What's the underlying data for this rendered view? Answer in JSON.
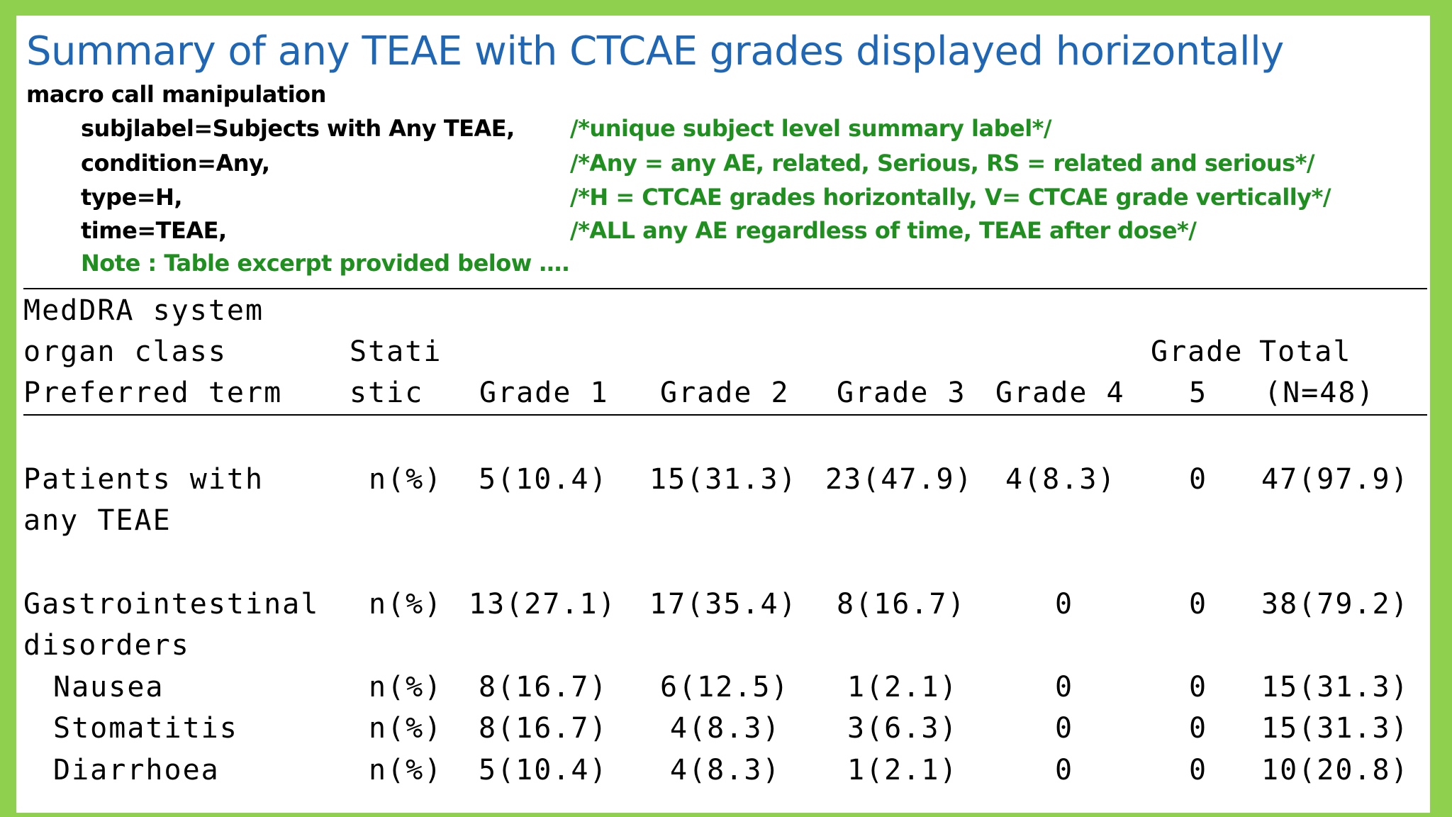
{
  "title": "Summary of any TEAE with CTCAE grades displayed horizontally",
  "macro": {
    "heading": "macro call manipulation",
    "params": [
      {
        "code": "subjlabel=Subjects with Any TEAE,",
        "comment": "/*unique subject level summary label*/"
      },
      {
        "code": "condition=Any,",
        "comment": "/*Any = any AE, related, Serious, RS = related and serious*/"
      },
      {
        "code": "type=H,",
        "comment": "/*H = CTCAE grades horizontally, V= CTCAE grade vertically*/"
      },
      {
        "code": "time=TEAE,",
        "comment": "/*ALL any AE regardless of time, TEAE after dose*/"
      }
    ],
    "note": "Note : Table excerpt provided below …."
  },
  "table": {
    "header": {
      "soc_line1": "MedDRA system",
      "soc_line2": "organ class",
      "soc_line3": "Preferred term",
      "stat_line1": "Stati",
      "stat_line2": "stic",
      "grade1": "Grade 1",
      "grade2": "Grade 2",
      "grade3": "Grade 3",
      "grade4": "Grade 4",
      "grade5_line1": "Grade",
      "grade5_line2": "5",
      "total_line1": "Total",
      "total_line2": "(N=48)"
    },
    "rows": [
      {
        "label1": "Patients with",
        "label2": "any TEAE",
        "stat": "n(%)",
        "g1": "5(10.4)",
        "g2": "15(31.3)",
        "g3": "23(47.9)",
        "g4": "4(8.3)",
        "g5": "0",
        "total": "47(97.9)"
      },
      {
        "label1": "Gastrointestinal",
        "label2": "disorders",
        "stat": "n(%)",
        "g1": "13(27.1)",
        "g2": "17(35.4)",
        "g3": "8(16.7)",
        "g4": "0",
        "g5": "0",
        "total": "38(79.2)"
      },
      {
        "label1": "Nausea",
        "label2": "",
        "stat": "n(%)",
        "g1": "8(16.7)",
        "g2": "6(12.5)",
        "g3": "1(2.1)",
        "g4": "0",
        "g5": "0",
        "total": "15(31.3)"
      },
      {
        "label1": "Stomatitis",
        "label2": "",
        "stat": "n(%)",
        "g1": "8(16.7)",
        "g2": "4(8.3)",
        "g3": "3(6.3)",
        "g4": "0",
        "g5": "0",
        "total": "15(31.3)"
      },
      {
        "label1": "Diarrhoea",
        "label2": "",
        "stat": "n(%)",
        "g1": "5(10.4)",
        "g2": "4(8.3)",
        "g3": "1(2.1)",
        "g4": "0",
        "g5": "0",
        "total": "10(20.8)"
      }
    ]
  }
}
